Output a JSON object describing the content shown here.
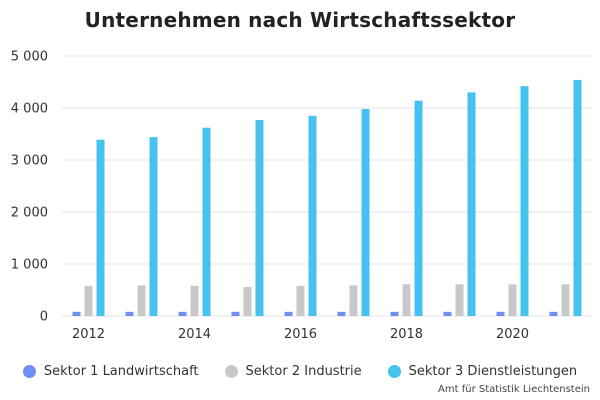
{
  "chart_data": {
    "type": "bar",
    "title": "Unternehmen nach Wirtschaftssektor",
    "categories": [
      "2012",
      "2013",
      "2014",
      "2015",
      "2016",
      "2017",
      "2018",
      "2019",
      "2020",
      "2021"
    ],
    "x_tick_labels": [
      "2012",
      "",
      "2014",
      "",
      "2016",
      "",
      "2018",
      "",
      "2020",
      ""
    ],
    "series": [
      {
        "name": "Sektor 1 Landwirtschaft",
        "color": "#6f8ff2",
        "values": [
          80,
          80,
          80,
          80,
          80,
          80,
          80,
          80,
          80,
          80
        ]
      },
      {
        "name": "Sektor 2 Industrie",
        "color": "#c8c8c8",
        "values": [
          580,
          590,
          580,
          560,
          580,
          590,
          610,
          610,
          610,
          610
        ]
      },
      {
        "name": "Sektor 3 Dienstleistungen",
        "color": "#45c2ef",
        "values": [
          3390,
          3440,
          3620,
          3770,
          3850,
          3980,
          4140,
          4300,
          4420,
          4540
        ]
      }
    ],
    "ylim": [
      0,
      5000
    ],
    "y_ticks": [
      0,
      1000,
      2000,
      3000,
      4000,
      5000
    ],
    "y_tick_labels": [
      "0",
      "1 000",
      "2 000",
      "3 000",
      "4 000",
      "5 000"
    ],
    "grid": true,
    "legend_position": "bottom"
  },
  "source": "Amt für Statistik Liechtenstein"
}
